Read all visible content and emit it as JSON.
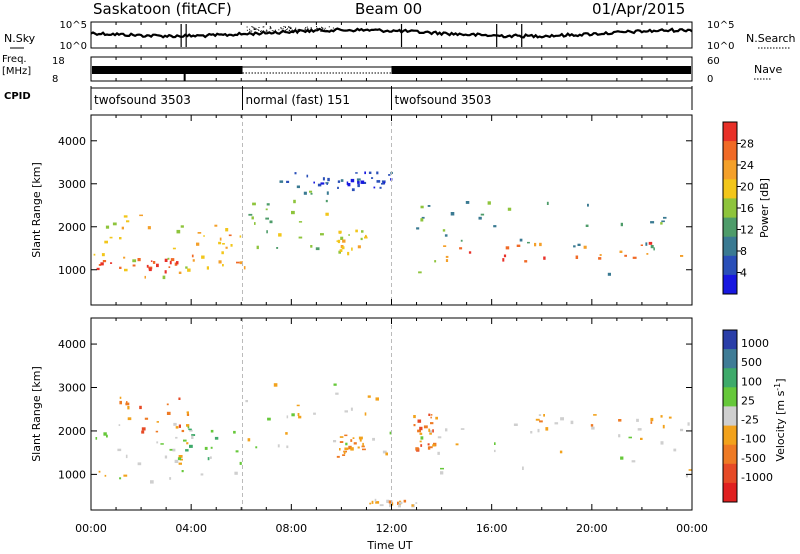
{
  "header": {
    "radar_title": "Saskatoon (fitACF)",
    "beam": "Beam 00",
    "date": "01/Apr/2015"
  },
  "panels": {
    "nsky": {
      "label": "N.Sky",
      "tick_top": "10^5",
      "tick_bottom": "10^0"
    },
    "nsearch": {
      "label": "N.Search",
      "tick_top": "10^5",
      "tick_bottom": "10^0"
    },
    "freq": {
      "label_line1": "Freq.",
      "label_line2": "[MHz]",
      "tick_top": "18",
      "tick_bottom": "8"
    },
    "nave": {
      "label": "Nave",
      "tick_top": "60",
      "tick_bottom": "0"
    },
    "cpid": {
      "label": "CPID"
    }
  },
  "cpid_modes": [
    {
      "name": "twofsound 3503",
      "start_hour": 0,
      "end_hour": 6.05
    },
    {
      "name": "normal (fast) 151",
      "start_hour": 6.05,
      "end_hour": 12.0
    },
    {
      "name": "twofsound 3503",
      "start_hour": 12.0,
      "end_hour": 24
    }
  ],
  "axes": {
    "ylabel": "Slant Range [km]",
    "xlabel": "Time UT",
    "y_ticks": [
      "1000",
      "2000",
      "3000",
      "4000"
    ],
    "x_ticks": [
      "00:00",
      "04:00",
      "08:00",
      "12:00",
      "16:00",
      "20:00",
      "00:00"
    ]
  },
  "colorbars": {
    "power": {
      "label": "Power [dB]",
      "ticks": [
        "4",
        "8",
        "12",
        "16",
        "20",
        "24",
        "28"
      ],
      "colors": [
        "#1818e0",
        "#2a4fb8",
        "#3a7a92",
        "#4e9c6a",
        "#8ec43c",
        "#f2c61a",
        "#f4a02a",
        "#f06a26",
        "#e83028"
      ]
    },
    "velocity": {
      "label": "Velocity [m s^-1]",
      "ticks": [
        "1000",
        "500",
        "100",
        "25",
        "-25",
        "-100",
        "-500",
        "-1000"
      ],
      "colors": [
        "#2a3ea8",
        "#3f7c96",
        "#3eaa6a",
        "#66c83a",
        "#cfcfcf",
        "#f2a21c",
        "#ee7a24",
        "#e64a26",
        "#e02020"
      ]
    }
  },
  "chart_data": [
    {
      "type": "heatmap",
      "name": "power",
      "xlabel": "Time UT",
      "ylabel": "Slant Range [km]",
      "xlim_hours": [
        0,
        24
      ],
      "ylim_km": [
        180,
        4600
      ],
      "colorbar_label": "Power [dB]",
      "colorbar_range": [
        0,
        30
      ],
      "echo_regions": [
        {
          "t0": 0.0,
          "t1": 4.0,
          "r0": 850,
          "r1": 2300,
          "value": 18
        },
        {
          "t0": 0.0,
          "t1": 3.5,
          "r0": 950,
          "r1": 1300,
          "value": 27
        },
        {
          "t0": 4.0,
          "t1": 6.3,
          "r0": 1000,
          "r1": 2100,
          "value": 22
        },
        {
          "t0": 6.0,
          "t1": 9.5,
          "r0": 1500,
          "r1": 2900,
          "value": 14
        },
        {
          "t0": 7.5,
          "t1": 10.5,
          "r0": 2800,
          "r1": 3300,
          "value": 5
        },
        {
          "t0": 10.5,
          "t1": 12.0,
          "r0": 2900,
          "r1": 3300,
          "value": 4
        },
        {
          "t0": 9.8,
          "t1": 11.0,
          "r0": 1400,
          "r1": 1950,
          "value": 19
        },
        {
          "t0": 12.8,
          "t1": 24.0,
          "r0": 900,
          "r1": 2600,
          "value": 12
        },
        {
          "t0": 14.0,
          "t1": 24.0,
          "r0": 1150,
          "r1": 1700,
          "value": 24
        }
      ]
    },
    {
      "type": "heatmap",
      "name": "velocity",
      "xlabel": "Time UT",
      "ylabel": "Slant Range [km]",
      "xlim_hours": [
        0,
        24
      ],
      "ylim_km": [
        180,
        4600
      ],
      "colorbar_label": "Velocity [m s^-1]",
      "colorbar_range": [
        -1000,
        1000
      ],
      "echo_regions": [
        {
          "t0": 0.0,
          "t1": 4.0,
          "r0": 850,
          "r1": 2200,
          "value": 0
        },
        {
          "t0": 1.0,
          "t1": 4.0,
          "r0": 2000,
          "r1": 2800,
          "value": -400
        },
        {
          "t0": 3.0,
          "t1": 6.3,
          "r0": 1000,
          "r1": 2200,
          "value": 150
        },
        {
          "t0": 6.0,
          "t1": 12.0,
          "r0": 1500,
          "r1": 3300,
          "value": 0
        },
        {
          "t0": 9.8,
          "t1": 11.0,
          "r0": 1400,
          "r1": 1950,
          "value": -300
        },
        {
          "t0": 12.8,
          "t1": 13.8,
          "r0": 1600,
          "r1": 2400,
          "value": -500
        },
        {
          "t0": 13.0,
          "t1": 24.0,
          "r0": 1000,
          "r1": 2100,
          "value": 0
        },
        {
          "t0": 16.0,
          "t1": 24.0,
          "r0": 2000,
          "r1": 2400,
          "value": -200
        },
        {
          "t0": 11.0,
          "t1": 13.0,
          "r0": 300,
          "r1": 450,
          "value": -150
        }
      ]
    }
  ]
}
